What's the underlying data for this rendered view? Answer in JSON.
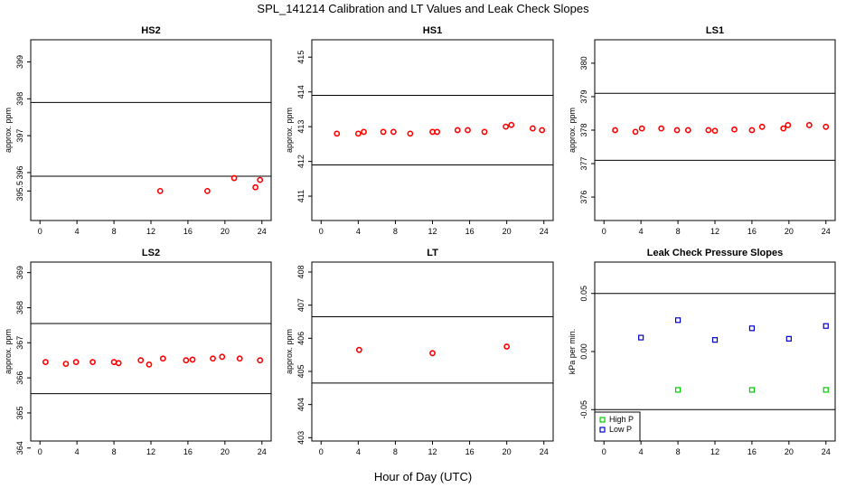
{
  "figure": {
    "title": "SPL_141214  Calibration and LT Values and Leak Check Slopes",
    "xlabel": "Hour of Day (UTC)"
  },
  "chart_data": [
    {
      "type": "scatter",
      "title": "HS2",
      "ylabel": "approx. ppm",
      "xlim": [
        -1,
        25
      ],
      "ylim": [
        394.7,
        399.6
      ],
      "xticks": [
        "0",
        "4",
        "8",
        "12",
        "16",
        "20",
        "24"
      ],
      "yticks": [
        "395.5",
        "396",
        "397",
        "398",
        "399"
      ],
      "hlines": [
        395.9,
        397.9
      ],
      "series": [
        {
          "color": "#ff0000",
          "marker": "circle",
          "x": [
            13.0,
            18.1,
            21.0,
            23.3,
            23.8
          ],
          "y": [
            395.5,
            395.5,
            395.85,
            395.6,
            395.8
          ]
        }
      ]
    },
    {
      "type": "scatter",
      "title": "HS1",
      "ylabel": "approx. ppm",
      "xlim": [
        -1,
        25
      ],
      "ylim": [
        410.3,
        415.5
      ],
      "xticks": [
        "0",
        "4",
        "8",
        "12",
        "16",
        "20",
        "24"
      ],
      "yticks": [
        "411",
        "412",
        "413",
        "414",
        "415"
      ],
      "hlines": [
        411.9,
        413.9
      ],
      "series": [
        {
          "color": "#ff0000",
          "marker": "circle",
          "x": [
            1.7,
            4.0,
            4.6,
            6.7,
            7.8,
            9.6,
            12.0,
            12.5,
            14.7,
            15.8,
            17.6,
            19.9,
            20.5,
            22.8,
            23.8
          ],
          "y": [
            412.8,
            412.8,
            412.85,
            412.85,
            412.85,
            412.8,
            412.85,
            412.85,
            412.9,
            412.9,
            412.85,
            413.0,
            413.05,
            412.95,
            412.9
          ]
        }
      ]
    },
    {
      "type": "scatter",
      "title": "LS1",
      "ylabel": "approx. ppm",
      "xlim": [
        -1,
        25
      ],
      "ylim": [
        375.3,
        380.7
      ],
      "xticks": [
        "0",
        "4",
        "8",
        "12",
        "16",
        "20",
        "24"
      ],
      "yticks": [
        "376",
        "377",
        "378",
        "379",
        "380"
      ],
      "hlines": [
        377.1,
        379.1
      ],
      "series": [
        {
          "color": "#ff0000",
          "marker": "circle",
          "x": [
            1.2,
            3.4,
            4.1,
            6.2,
            7.9,
            9.1,
            11.3,
            12.0,
            14.1,
            16.0,
            17.1,
            19.4,
            19.9,
            22.2,
            24.0
          ],
          "y": [
            378.0,
            377.95,
            378.05,
            378.05,
            378.0,
            378.0,
            378.0,
            377.98,
            378.02,
            378.0,
            378.1,
            378.05,
            378.15,
            378.15,
            378.1
          ]
        }
      ]
    },
    {
      "type": "scatter",
      "title": "LS2",
      "ylabel": "approx. ppm",
      "xlim": [
        -1,
        25
      ],
      "ylim": [
        364.2,
        369.3
      ],
      "xticks": [
        "0",
        "4",
        "8",
        "12",
        "16",
        "20",
        "24"
      ],
      "yticks": [
        "364",
        "365",
        "366",
        "367",
        "368",
        "369"
      ],
      "hlines": [
        365.55,
        367.55
      ],
      "series": [
        {
          "color": "#ff0000",
          "marker": "circle",
          "x": [
            0.6,
            2.8,
            3.9,
            5.7,
            8.0,
            8.5,
            10.9,
            11.8,
            13.3,
            15.8,
            16.5,
            18.7,
            19.7,
            21.6,
            23.8
          ],
          "y": [
            366.45,
            366.4,
            366.45,
            366.45,
            366.45,
            366.42,
            366.5,
            366.38,
            366.55,
            366.5,
            366.52,
            366.55,
            366.6,
            366.55,
            366.5
          ]
        }
      ]
    },
    {
      "type": "scatter",
      "title": "LT",
      "ylabel": "approx. ppm",
      "xlim": [
        -1,
        25
      ],
      "ylim": [
        402.9,
        408.3
      ],
      "xticks": [
        "0",
        "4",
        "8",
        "12",
        "16",
        "20",
        "24"
      ],
      "yticks": [
        "403",
        "404",
        "405",
        "406",
        "407",
        "408"
      ],
      "hlines": [
        404.65,
        406.65
      ],
      "series": [
        {
          "color": "#ff0000",
          "marker": "circle",
          "x": [
            4.1,
            12.0,
            20.0
          ],
          "y": [
            405.65,
            405.55,
            405.75
          ]
        }
      ]
    },
    {
      "type": "scatter",
      "title": "Leak Check Pressure Slopes",
      "ylabel": "kPa per min.",
      "xlim": [
        -1,
        25
      ],
      "ylim": [
        -0.077,
        0.077
      ],
      "xticks": [
        "0",
        "4",
        "8",
        "12",
        "16",
        "20",
        "24"
      ],
      "yticks": [
        "-0.05",
        "0.00",
        "0.05"
      ],
      "hlines": [
        -0.05,
        0.05
      ],
      "legend": "bottom-left",
      "series": [
        {
          "name": "High P",
          "color": "#00cc00",
          "marker": "square",
          "x": [
            8.0,
            16.0,
            24.0
          ],
          "y": [
            -0.033,
            -0.033,
            -0.033
          ]
        },
        {
          "name": "Low P",
          "color": "#0000cc",
          "marker": "square",
          "x": [
            4.0,
            8.0,
            12.0,
            16.0,
            20.0,
            24.0
          ],
          "y": [
            0.012,
            0.027,
            0.01,
            0.02,
            0.011,
            0.022
          ]
        }
      ]
    }
  ]
}
